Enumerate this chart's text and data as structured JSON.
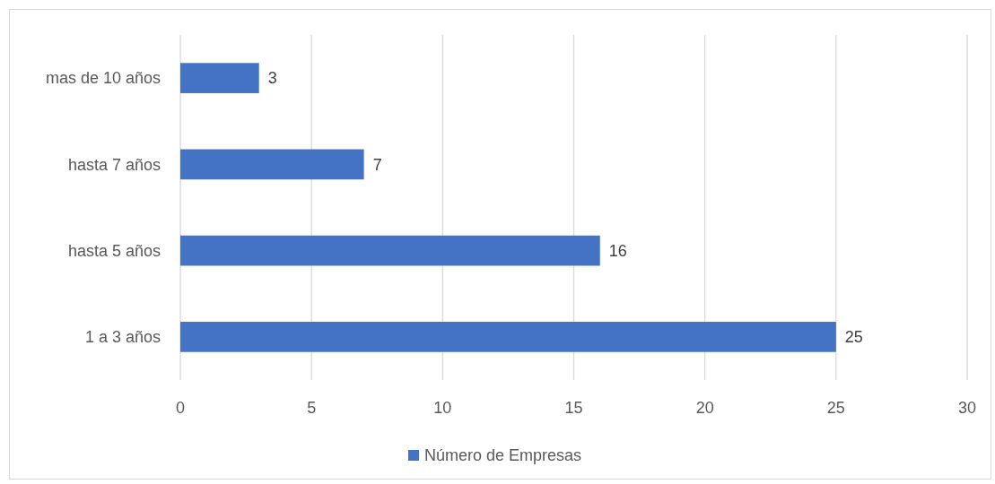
{
  "chart_data": {
    "type": "bar",
    "orientation": "horizontal",
    "categories": [
      "mas de 10 años",
      "hasta 7 años",
      "hasta 5 años",
      "1 a 3 años"
    ],
    "series": [
      {
        "name": "Número de Empresas",
        "color": "#4472c4",
        "values": [
          3,
          7,
          16,
          25
        ]
      }
    ],
    "xlim": [
      0,
      30
    ],
    "xticks": [
      0,
      5,
      10,
      15,
      20,
      25,
      30
    ],
    "grid": "x",
    "legend": "bottom",
    "data_labels": true
  }
}
